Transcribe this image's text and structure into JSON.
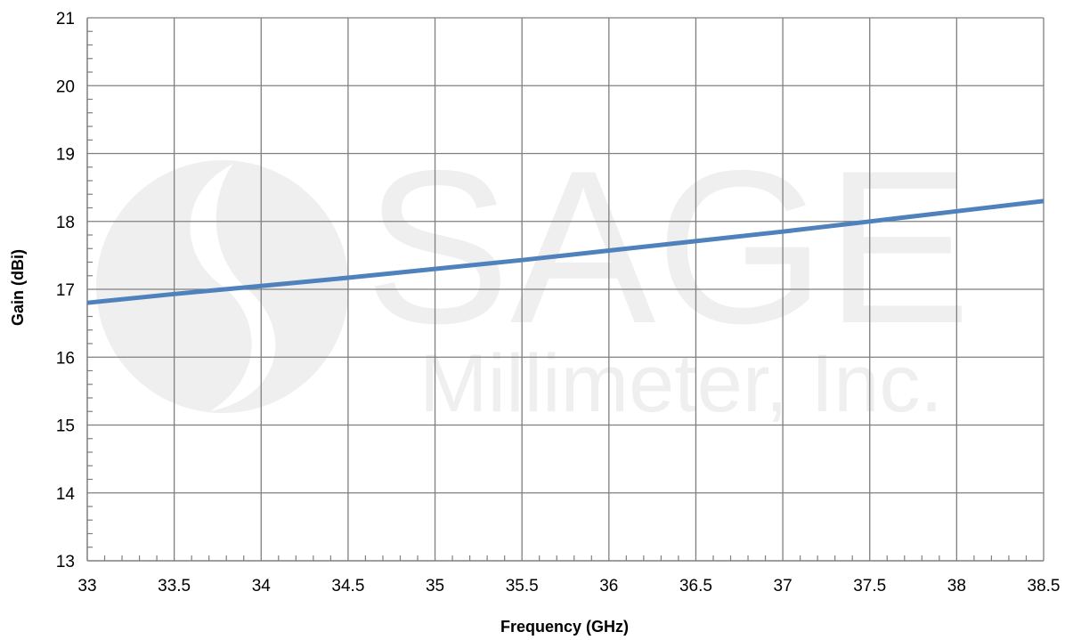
{
  "chart_data": {
    "type": "line",
    "title": "",
    "xlabel": "Frequency (GHz)",
    "ylabel": "Gain (dBi)",
    "xlim": [
      33,
      38.5
    ],
    "ylim": [
      13,
      21
    ],
    "x_ticks": [
      "33",
      "33.5",
      "34",
      "34.5",
      "35",
      "35.5",
      "36",
      "36.5",
      "37",
      "37.5",
      "38",
      "38.5"
    ],
    "y_ticks": [
      "13",
      "14",
      "15",
      "16",
      "17",
      "18",
      "19",
      "20",
      "21"
    ],
    "grid": true,
    "legend": "none",
    "series": [
      {
        "color": "#4f81bd",
        "x": [
          33,
          33.5,
          34,
          34.5,
          35,
          35.5,
          36,
          36.5,
          37,
          37.5,
          38,
          38.5
        ],
        "y": [
          16.8,
          16.93,
          17.05,
          17.17,
          17.3,
          17.43,
          17.57,
          17.71,
          17.85,
          18.0,
          18.15,
          18.3
        ]
      }
    ]
  },
  "watermark": {
    "line1": "SAGE",
    "line2": "Millimeter, Inc."
  }
}
